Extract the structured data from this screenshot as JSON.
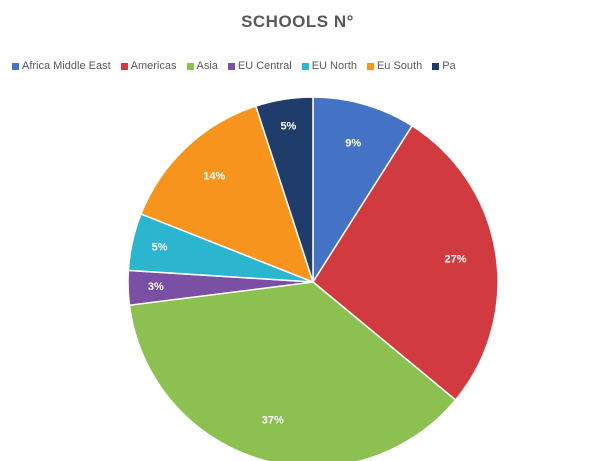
{
  "chart_data": {
    "type": "pie",
    "title": "SCHOOLS N°",
    "legend_position": "top",
    "categories": [
      "Africa Middle East",
      "Americas",
      "Asia",
      "EU Central",
      "EU North",
      "Eu South",
      "Pa"
    ],
    "values": [
      9,
      27,
      37,
      3,
      5,
      14,
      5
    ],
    "labels": [
      "9%",
      "27%",
      "37%",
      "3%",
      "5%",
      "14%",
      "5%"
    ],
    "colors": [
      "#4472C4",
      "#D13B40",
      "#8CC152",
      "#7B4FA3",
      "#2BB5CE",
      "#F7941D",
      "#1F3C6B"
    ]
  }
}
